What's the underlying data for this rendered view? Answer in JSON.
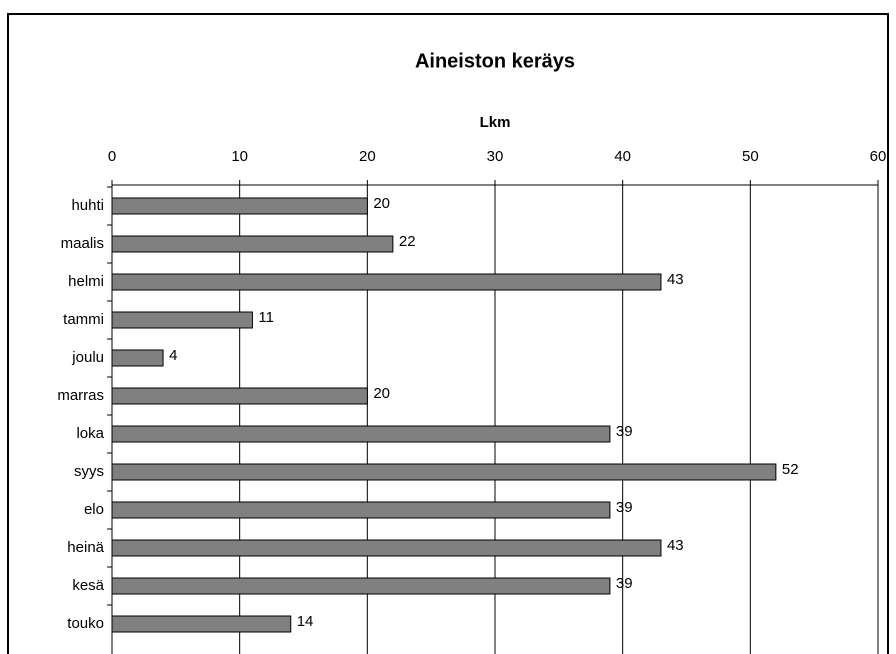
{
  "chart_data": {
    "type": "bar",
    "orientation": "horizontal",
    "title": "Aineiston keräys",
    "x_label": "Lkm",
    "categories": [
      "huhti",
      "maalis",
      "helmi",
      "tammi",
      "joulu",
      "marras",
      "loka",
      "syys",
      "elo",
      "heinä",
      "kesä",
      "touko"
    ],
    "values": [
      20,
      22,
      43,
      11,
      4,
      20,
      39,
      52,
      39,
      43,
      39,
      14
    ],
    "color": "#808080",
    "xlim": [
      0,
      60
    ],
    "xticks": [
      0,
      10,
      20,
      30,
      40,
      50,
      60
    ],
    "grid": true
  }
}
